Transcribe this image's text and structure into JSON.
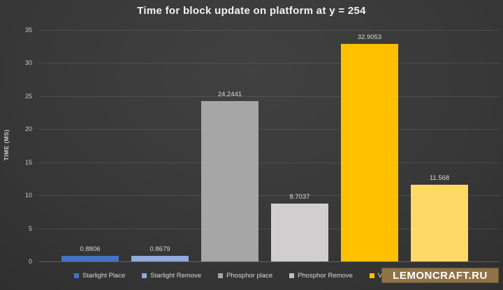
{
  "watermark": {
    "text": "LEMONCRAFT.RU",
    "bg_color": "#8e7347",
    "text_color": "#ffffff"
  },
  "chart_data": {
    "type": "bar",
    "title": "Time for block update on platform at y = 254",
    "xlabel": "",
    "ylabel": "TIME (MS)",
    "ylim": [
      0,
      35
    ],
    "yticks": [
      0,
      5,
      10,
      15,
      20,
      25,
      30,
      35
    ],
    "grid": true,
    "legend_position": "bottom",
    "categories": [
      "Starlight Place",
      "Starlight Remove",
      "Phosphor place",
      "Phosphor Remove",
      "Vanilla place",
      ""
    ],
    "values": [
      0.8806,
      0.8679,
      24.2441,
      8.7037,
      32.9053,
      11.568
    ],
    "data_labels": [
      "0.8806",
      "0.8679",
      "24.2441",
      "8.7037",
      "32.9053",
      "11.568"
    ],
    "bar_colors": [
      "#4472c4",
      "#8faadc",
      "#a6a6a6",
      "#d0cece",
      "#ffc000",
      "#ffd966"
    ],
    "legend": [
      {
        "label": "Starlight Place",
        "color": "#4472c4"
      },
      {
        "label": "Starlight Remove",
        "color": "#8faadc"
      },
      {
        "label": "Phosphor place",
        "color": "#a6a6a6"
      },
      {
        "label": "Phosphor Remove",
        "color": "#bfbfbf"
      },
      {
        "label": "Vanilla place",
        "color": "#ffc000"
      },
      {
        "label": "",
        "color": "#ffd966"
      }
    ],
    "colors": {
      "background_center": "#414141",
      "background_edge": "#232323",
      "gridline": "#474747",
      "tick_text": "#c9c9c9",
      "label_text": "#d9d9d9",
      "title_text": "#f2f2f2"
    }
  }
}
